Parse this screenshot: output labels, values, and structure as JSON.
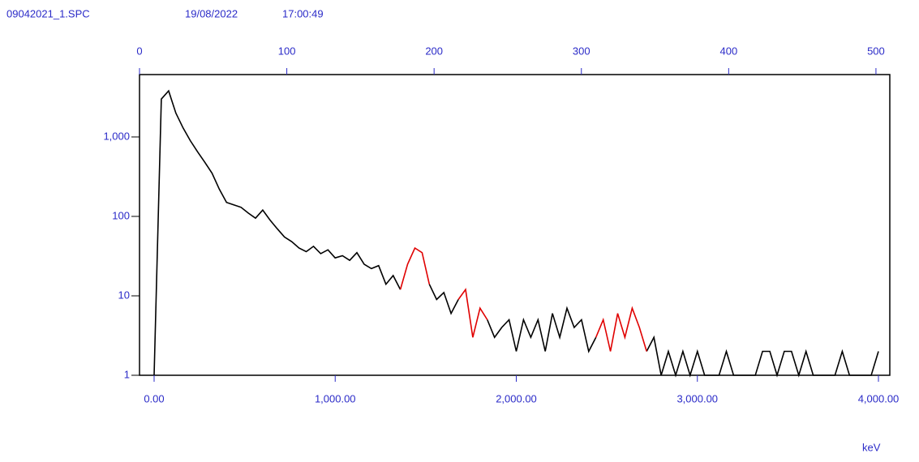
{
  "chart_data": {
    "type": "line",
    "log_y": true,
    "file": "09042021_1.SPC",
    "date": "19/08/2022",
    "time": "17:00:49",
    "x_label": "keV",
    "xlim": [
      -80.6,
      4062.7
    ],
    "xticks": [
      {
        "value": 0,
        "label": "0.00"
      },
      {
        "value": 1000,
        "label": "1,000.00"
      },
      {
        "value": 2000,
        "label": "2,000.00"
      },
      {
        "value": 3000,
        "label": "3,000.00"
      },
      {
        "value": 4000,
        "label": "4,000.00"
      }
    ],
    "x2lim": [
      0,
      509.4
    ],
    "x2ticks": [
      0,
      100,
      200,
      300,
      400,
      500
    ],
    "ylim": [
      1,
      6100
    ],
    "yticks": [
      1,
      10,
      100,
      {
        "value": 1000,
        "label": "1,000"
      }
    ],
    "x": [
      0,
      40,
      80,
      120,
      160,
      200,
      240,
      280,
      320,
      360,
      400,
      440,
      480,
      520,
      560,
      600,
      640,
      680,
      720,
      760,
      800,
      840,
      880,
      920,
      960,
      1000,
      1040,
      1080,
      1120,
      1160,
      1200,
      1240,
      1280,
      1320,
      1360,
      1400,
      1440,
      1480,
      1520,
      1560,
      1600,
      1640,
      1680,
      1720,
      1760,
      1800,
      1840,
      1880,
      1920,
      1960,
      2000,
      2040,
      2080,
      2120,
      2160,
      2200,
      2240,
      2280,
      2320,
      2360,
      2400,
      2440,
      2480,
      2520,
      2560,
      2600,
      2640,
      2680,
      2720,
      2760,
      2800,
      2840,
      2880,
      2920,
      2960,
      3000,
      3040,
      3080,
      3120,
      3160,
      3200,
      3240,
      3280,
      3320,
      3360,
      3400,
      3440,
      3480,
      3520,
      3560,
      3600,
      3640,
      3680,
      3720,
      3760,
      3800,
      3840,
      3880,
      3920,
      3960,
      4000
    ],
    "series": [
      {
        "color": "#000000",
        "values": [
          1,
          3000,
          3800,
          2000,
          1300,
          900,
          650,
          480,
          350,
          220,
          150,
          140,
          130,
          110,
          95,
          120,
          90,
          70,
          55,
          48,
          40,
          36,
          42,
          34,
          38,
          30,
          32,
          28,
          35,
          25,
          22,
          24,
          14,
          18,
          12,
          null,
          null,
          null,
          14,
          9,
          11,
          6,
          9,
          null,
          null,
          null,
          5,
          3,
          4,
          5,
          2,
          5,
          3,
          5,
          2,
          6,
          3,
          7,
          4,
          5,
          2,
          3,
          null,
          null,
          null,
          null,
          null,
          null,
          2,
          3,
          1,
          2,
          1,
          2,
          1,
          2,
          1,
          1,
          1,
          2,
          1,
          1,
          1,
          1,
          2,
          2,
          1,
          2,
          2,
          1,
          2,
          1,
          1,
          1,
          1,
          2,
          1,
          1,
          1,
          1,
          2
        ]
      },
      {
        "color": "#e00000",
        "values": [
          null,
          null,
          null,
          null,
          null,
          null,
          null,
          null,
          null,
          null,
          null,
          null,
          null,
          null,
          null,
          null,
          null,
          null,
          null,
          null,
          null,
          null,
          null,
          null,
          null,
          null,
          null,
          null,
          null,
          null,
          null,
          null,
          null,
          null,
          12,
          25,
          40,
          35,
          14,
          null,
          null,
          null,
          9,
          12,
          3,
          7,
          5,
          null,
          null,
          null,
          null,
          null,
          null,
          null,
          null,
          null,
          null,
          null,
          null,
          null,
          null,
          3,
          5,
          2,
          6,
          3,
          7,
          4,
          2,
          null,
          null,
          null,
          null,
          null,
          null,
          null,
          null,
          null,
          null,
          null,
          null,
          null,
          null,
          null,
          null,
          null,
          null,
          null,
          null,
          null,
          null,
          null,
          null,
          null,
          null,
          null,
          null,
          null,
          null,
          null,
          null
        ]
      }
    ]
  }
}
